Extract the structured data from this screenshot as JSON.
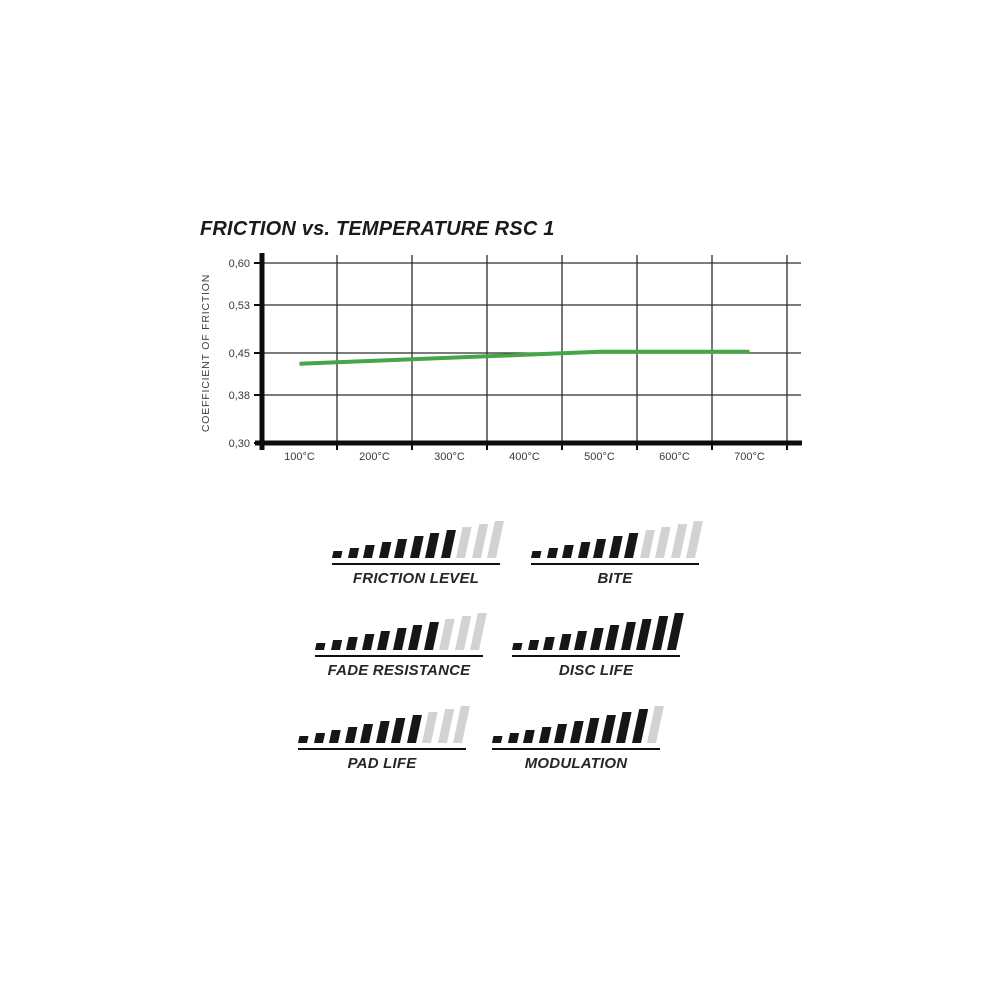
{
  "title": "FRICTION vs. TEMPERATURE RSC 1",
  "chart_data": {
    "type": "line",
    "title": "FRICTION vs. TEMPERATURE RSC 1",
    "xlabel": "",
    "ylabel": "COEFFICIENT OF FRICTION",
    "x_tick_labels": [
      "100°C",
      "200°C",
      "300°C",
      "400°C",
      "500°C",
      "600°C",
      "700°C"
    ],
    "y_tick_labels": [
      "0,60",
      "0,53",
      "0,45",
      "0,38",
      "0,30"
    ],
    "y_tick_values": [
      0.6,
      0.53,
      0.45,
      0.38,
      0.3
    ],
    "ylim": [
      0.3,
      0.6
    ],
    "grid": true,
    "legend": "none",
    "series": [
      {
        "name": "RSC 1",
        "color": "#46a546",
        "x": [
          100,
          200,
          300,
          400,
          500,
          600,
          700
        ],
        "values": [
          0.432,
          0.437,
          0.442,
          0.447,
          0.452,
          0.452,
          0.452
        ]
      }
    ],
    "colors": {
      "grid": "#2d2d2d",
      "axis": "#0d0d0d",
      "tick_text": "#3a3a3a"
    }
  },
  "ratings": {
    "total_segments": 11,
    "filled_color": "#161616",
    "empty_color": "#d2d2d2",
    "items": [
      {
        "label": "FRICTION LEVEL",
        "value": 8
      },
      {
        "label": "BITE",
        "value": 7
      },
      {
        "label": "FADE RESISTANCE",
        "value": 8
      },
      {
        "label": "DISC LIFE",
        "value": 11
      },
      {
        "label": "PAD LIFE",
        "value": 8
      },
      {
        "label": "MODULATION",
        "value": 10
      }
    ]
  }
}
